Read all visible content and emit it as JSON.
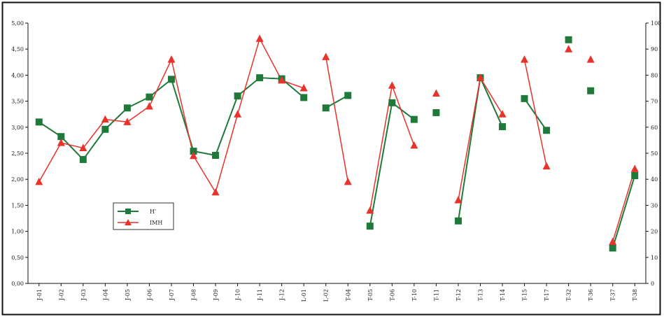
{
  "chart_data": {
    "type": "line",
    "categories": [
      "J-01",
      "J-02",
      "J-03",
      "J-04",
      "J-05",
      "J-06",
      "J-07",
      "J-08",
      "J-09",
      "J-10",
      "J-11",
      "J-12",
      "L-01",
      "L-02",
      "T-04",
      "T-05",
      "T-06",
      "T-10",
      "T-11",
      "T-12",
      "T-13",
      "T-14",
      "T-15",
      "T-17",
      "T-32",
      "T-36",
      "T-37",
      "T-38"
    ],
    "y_left": {
      "ticks": [
        "0,00",
        "0,50",
        "1,00",
        "1,50",
        "2,00",
        "2,50",
        "3,00",
        "3,50",
        "4,00",
        "4,50",
        "5,00"
      ],
      "range": [
        0,
        5
      ]
    },
    "y_right": {
      "ticks": [
        "0",
        "10",
        "20",
        "30",
        "40",
        "50",
        "60",
        "70",
        "80",
        "90",
        "100"
      ],
      "range": [
        0,
        100
      ]
    },
    "series": [
      {
        "name": "H'",
        "axis": "left",
        "color": "#1f7a3a",
        "marker": "square",
        "values": [
          3.1,
          2.82,
          2.38,
          2.96,
          3.37,
          3.58,
          3.92,
          2.54,
          2.46,
          3.6,
          3.95,
          3.93,
          3.57,
          3.37,
          3.61,
          1.1,
          3.47,
          3.15,
          3.28,
          1.2,
          3.95,
          3.01,
          3.55,
          2.94,
          4.68,
          3.7,
          0.68,
          2.07
        ],
        "connected": [
          true,
          true,
          true,
          true,
          true,
          true,
          true,
          true,
          true,
          true,
          true,
          true,
          false,
          true,
          false,
          true,
          true,
          false,
          false,
          true,
          true,
          false,
          true,
          false,
          false,
          false,
          true,
          false
        ]
      },
      {
        "name": "IMH",
        "axis": "right",
        "color": "#e8322a",
        "marker": "triangle",
        "values": [
          39,
          54,
          52,
          63,
          62,
          68,
          86,
          49,
          35,
          65,
          94,
          78,
          75,
          87,
          39,
          28,
          76,
          53,
          73,
          32,
          79,
          65,
          86,
          45,
          90,
          86,
          16,
          44
        ],
        "connected": [
          true,
          true,
          true,
          true,
          true,
          true,
          true,
          true,
          true,
          true,
          true,
          true,
          false,
          true,
          false,
          true,
          true,
          false,
          false,
          true,
          true,
          false,
          true,
          false,
          false,
          false,
          true,
          false
        ]
      }
    ],
    "legend": {
      "position": "left-middle"
    },
    "grid": false
  }
}
